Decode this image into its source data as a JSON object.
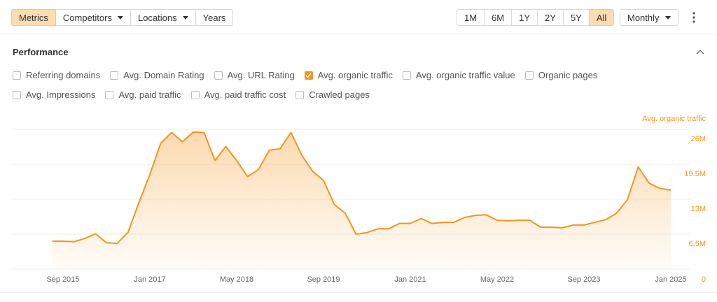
{
  "toolbar": {
    "tabs": [
      {
        "label": "Metrics",
        "active": true,
        "dropdown": false
      },
      {
        "label": "Competitors",
        "active": false,
        "dropdown": true
      },
      {
        "label": "Locations",
        "active": false,
        "dropdown": true
      },
      {
        "label": "Years",
        "active": false,
        "dropdown": false
      }
    ],
    "ranges": [
      {
        "label": "1M",
        "active": false
      },
      {
        "label": "6M",
        "active": false
      },
      {
        "label": "1Y",
        "active": false
      },
      {
        "label": "2Y",
        "active": false
      },
      {
        "label": "5Y",
        "active": false
      },
      {
        "label": "All",
        "active": true
      }
    ],
    "interval": "Monthly"
  },
  "section": {
    "title": "Performance"
  },
  "metrics": [
    [
      {
        "label": "Referring domains",
        "checked": false
      },
      {
        "label": "Avg. Domain Rating",
        "checked": false
      },
      {
        "label": "Avg. URL Rating",
        "checked": false
      },
      {
        "label": "Avg. organic traffic",
        "checked": true
      },
      {
        "label": "Avg. organic traffic value",
        "checked": false
      },
      {
        "label": "Organic pages",
        "checked": false
      }
    ],
    [
      {
        "label": "Avg. Impressions",
        "checked": false
      },
      {
        "label": "Avg. paid traffic",
        "checked": false
      },
      {
        "label": "Avg. paid traffic cost",
        "checked": false
      },
      {
        "label": "Crawled pages",
        "checked": false
      }
    ]
  ],
  "chart_data": {
    "type": "area",
    "categories": [
      null,
      "Sep 2015",
      null,
      null,
      null,
      null,
      null,
      null,
      null,
      "Jan 2017",
      null,
      null,
      null,
      null,
      null,
      null,
      null,
      "May 2018",
      null,
      null,
      null,
      null,
      null,
      null,
      null,
      "Sep 2019",
      null,
      null,
      null,
      null,
      null,
      null,
      null,
      "Jan 2021",
      null,
      null,
      null,
      null,
      null,
      null,
      null,
      "May 2022",
      null,
      null,
      null,
      null,
      null,
      null,
      null,
      "Sep 2023",
      null,
      null,
      null,
      null,
      null,
      null,
      null,
      "Jan 2025"
    ],
    "series": [
      {
        "name": "Avg. organic traffic",
        "color": "#f7941d",
        "values": [
          5200000,
          5200000,
          5100000,
          5700000,
          6600000,
          4900000,
          4800000,
          6900000,
          12400000,
          17600000,
          23400000,
          25400000,
          23700000,
          25500000,
          25400000,
          20200000,
          22800000,
          20200000,
          17200000,
          18500000,
          22100000,
          22400000,
          25400000,
          21200000,
          18200000,
          16500000,
          12000000,
          10400000,
          6500000,
          6800000,
          7500000,
          7500000,
          8500000,
          8500000,
          9400000,
          8500000,
          8700000,
          8700000,
          9600000,
          10000000,
          10100000,
          9100000,
          9000000,
          9100000,
          9100000,
          7800000,
          7800000,
          7700000,
          8200000,
          8200000,
          8700000,
          9200000,
          10400000,
          12900000,
          19000000,
          16000000,
          15000000,
          14700000
        ]
      }
    ],
    "ylim": [
      0,
      26000000
    ],
    "yticks": [
      0,
      {
        "value": 6500000,
        "label": "6.5M"
      },
      {
        "value": 13000000,
        "label": "13M"
      },
      {
        "value": 19500000,
        "label": "19.5M"
      },
      {
        "value": 26000000,
        "label": "26M"
      }
    ],
    "grid": true
  }
}
